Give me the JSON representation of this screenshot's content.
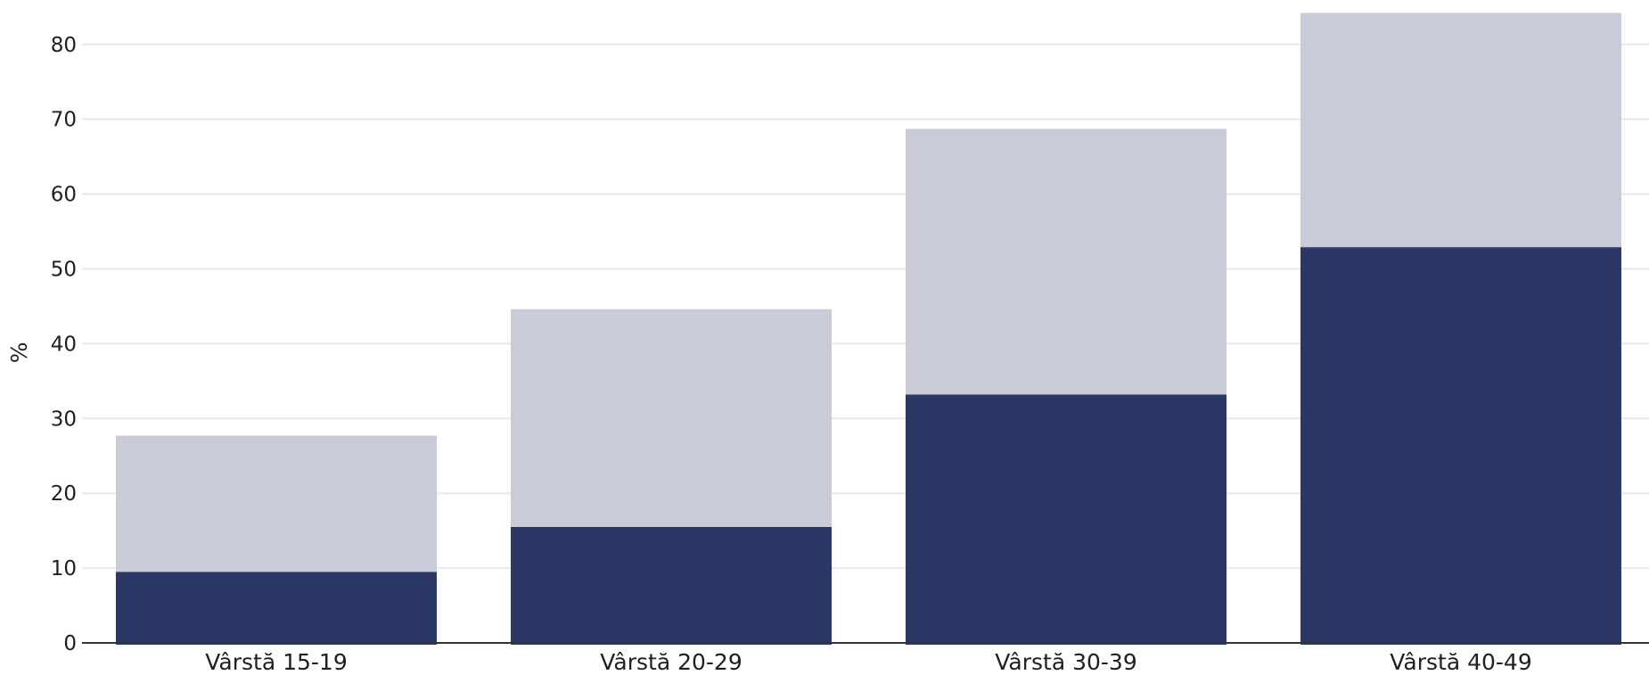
{
  "chart_data": {
    "type": "bar",
    "stacked": true,
    "categories": [
      "Vârstă 15-19",
      "Vârstă 20-29",
      "Vârstă 30-39",
      "Vârstă 40-49"
    ],
    "series": [
      {
        "values": [
          9.5,
          15.5,
          33.2,
          52.9
        ],
        "color": "#2b3765"
      },
      {
        "values": [
          18.2,
          29.1,
          35.5,
          31.3
        ],
        "color": "#c9cbd8"
      }
    ],
    "totals": [
      27.7,
      44.6,
      68.7,
      84.2
    ],
    "xlabel": "",
    "ylabel": "%",
    "ylim": [
      0,
      84.5
    ],
    "yticks": [
      0,
      10,
      20,
      30,
      40,
      50,
      60,
      70,
      80
    ],
    "grid": true,
    "gridColor": "#e8e8e8",
    "axisColor": "#333333"
  }
}
